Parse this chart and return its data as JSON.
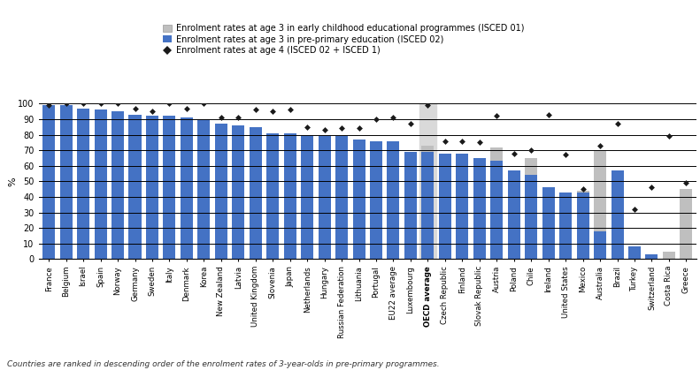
{
  "countries": [
    "France",
    "Belgium",
    "Israel",
    "Spain",
    "Norway",
    "Germany",
    "Sweden",
    "Italy",
    "Denmark",
    "Korea",
    "New Zealand",
    "Latvia",
    "United Kingdom",
    "Slovenia",
    "Japan",
    "Netherlands",
    "Hungary",
    "Russian Federation",
    "Lithuania",
    "Portugal",
    "EU22 average",
    "Luxembourg",
    "OECD average",
    "Czech Republic",
    "Finland",
    "Slovak Republic",
    "Austria",
    "Poland",
    "Chile",
    "Ireland",
    "United States",
    "Mexico",
    "Australia",
    "Brazil",
    "Turkey",
    "Switzerland",
    "Costa Rica",
    "Greece"
  ],
  "blue_bars": [
    99,
    99,
    97,
    96,
    95,
    93,
    92,
    92,
    91,
    90,
    87,
    86,
    85,
    81,
    81,
    80,
    79,
    79,
    77,
    76,
    76,
    69,
    69,
    68,
    68,
    65,
    63,
    57,
    54,
    46,
    43,
    43,
    18,
    57,
    8,
    3,
    0,
    0
  ],
  "grey_bars": [
    0,
    0,
    0,
    0,
    0,
    0,
    0,
    0,
    0,
    0,
    0,
    0,
    0,
    0,
    0,
    0,
    0,
    0,
    0,
    0,
    0,
    0,
    4,
    0,
    0,
    0,
    9,
    0,
    11,
    0,
    0,
    1,
    52,
    0,
    0,
    0,
    5,
    45
  ],
  "diamond_values": [
    99,
    100,
    100,
    100,
    100,
    97,
    95,
    100,
    97,
    100,
    91,
    91,
    96,
    95,
    96,
    85,
    83,
    84,
    84,
    90,
    91,
    87,
    99,
    76,
    76,
    75,
    92,
    68,
    70,
    93,
    67,
    45,
    73,
    87,
    32,
    46,
    79,
    49
  ],
  "oecd_avg_index": 22,
  "ylabel": "%",
  "legend": [
    "Enrolment rates at age 3 in early childhood educational programmes (ISCED 01)",
    "Enrolment rates at age 3 in pre-primary education (ISCED 02)",
    "Enrolment rates at age 4 (ISCED 02 + ISCED 1)"
  ],
  "footnote": "Countries are ranked in descending order of the enrolment rates of 3-year-olds in pre-primary programmes.",
  "blue_color": "#4472C4",
  "grey_color": "#BFBFBF",
  "diamond_color": "#1a1a1a",
  "oecd_bg_color": "#D9D9D9",
  "ylim": [
    0,
    100
  ],
  "yticks": [
    0,
    10,
    20,
    30,
    40,
    50,
    60,
    70,
    80,
    90,
    100
  ]
}
